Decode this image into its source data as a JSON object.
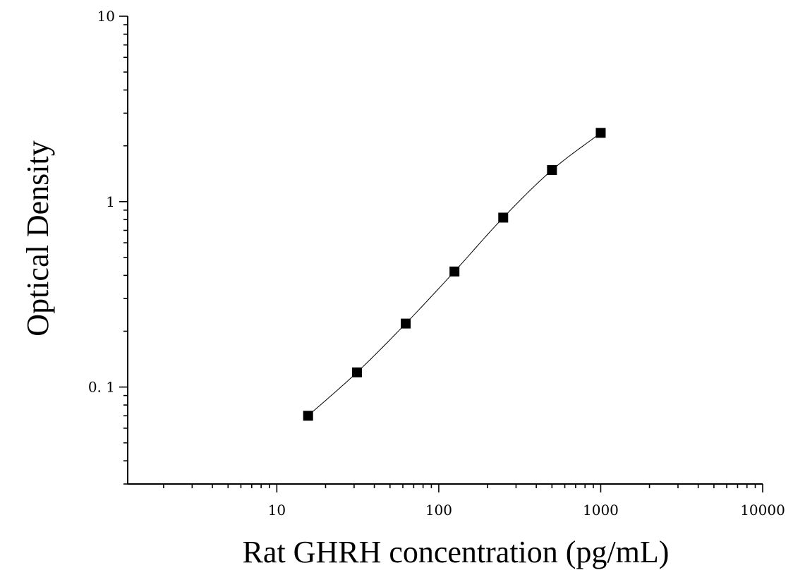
{
  "chart_data": {
    "type": "scatter",
    "title": "",
    "xlabel": "Rat GHRH concentration (pg/mL)",
    "ylabel": "Optical Density",
    "xscale": "log",
    "yscale": "log",
    "xlim": [
      1.2,
      10000
    ],
    "ylim": [
      0.03,
      10
    ],
    "x_tick_labels": [
      {
        "value": 10,
        "label": "10"
      },
      {
        "value": 100,
        "label": "100"
      },
      {
        "value": 1000,
        "label": "1000"
      },
      {
        "value": 10000,
        "label": "10000"
      }
    ],
    "y_tick_labels": [
      {
        "value": 0.1,
        "label": "0. 1"
      },
      {
        "value": 1,
        "label": "1"
      },
      {
        "value": 10,
        "label": "10"
      }
    ],
    "grid": false,
    "legend": "none",
    "marker_color": "#000000",
    "line_color": "#000000",
    "series": [
      {
        "marker": "square",
        "fit_curve": true,
        "x": [
          15.6,
          31.25,
          62.5,
          125,
          250,
          500,
          1000
        ],
        "y": [
          0.07,
          0.12,
          0.22,
          0.42,
          0.82,
          1.48,
          2.35
        ]
      }
    ]
  }
}
